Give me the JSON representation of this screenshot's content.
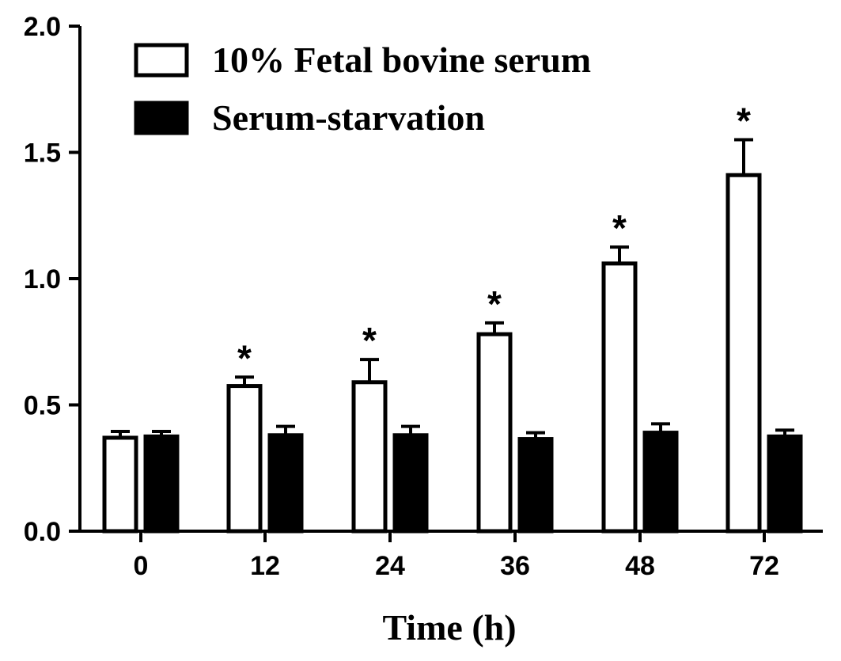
{
  "chart_data": {
    "type": "bar",
    "categories": [
      "0",
      "12",
      "24",
      "36",
      "48",
      "72"
    ],
    "series": [
      {
        "name": "10% Fetal bovine serum",
        "values": [
          0.37,
          0.575,
          0.59,
          0.78,
          1.06,
          1.41
        ],
        "errors": [
          0.025,
          0.035,
          0.09,
          0.045,
          0.065,
          0.14
        ],
        "fill": "#ffffff",
        "stroke": "#000000"
      },
      {
        "name": "Serum-starvation",
        "values": [
          0.375,
          0.38,
          0.38,
          0.365,
          0.39,
          0.375
        ],
        "errors": [
          0.02,
          0.035,
          0.035,
          0.025,
          0.035,
          0.025
        ],
        "fill": "#000000",
        "stroke": "#000000"
      }
    ],
    "significance": [
      "",
      "*",
      "*",
      "*",
      "*",
      "*"
    ],
    "xlabel": "Time (h)",
    "ylabel": "",
    "ylim": [
      0,
      2.0
    ],
    "yticks": [
      "0.0",
      "0.5",
      "1.0",
      "1.5",
      "2.0"
    ],
    "grid": false,
    "legend_position": "top-left"
  }
}
